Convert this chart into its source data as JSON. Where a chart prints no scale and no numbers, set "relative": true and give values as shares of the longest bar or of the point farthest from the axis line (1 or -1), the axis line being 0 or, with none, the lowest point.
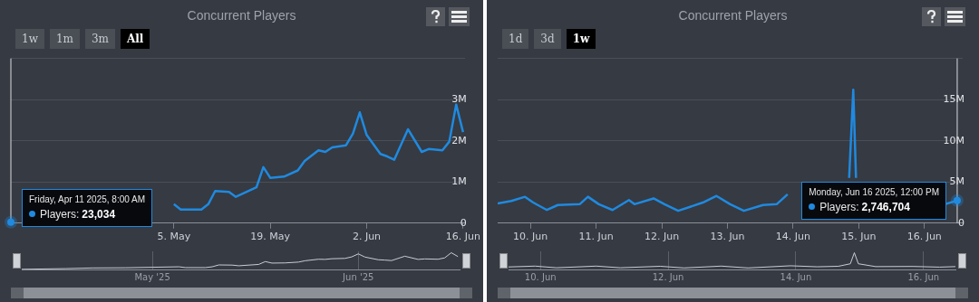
{
  "chart_data": [
    {
      "type": "line",
      "title": "Concurrent Players",
      "x": [
        "2025-04-11T08:00",
        "2025-04-25",
        "2025-05-05",
        "2025-05-06",
        "2025-05-09",
        "2025-05-10",
        "2025-05-11",
        "2025-05-13",
        "2025-05-14",
        "2025-05-17",
        "2025-05-18",
        "2025-05-19",
        "2025-05-21",
        "2025-05-23",
        "2025-05-24",
        "2025-05-26",
        "2025-05-27",
        "2025-05-28",
        "2025-05-30",
        "2025-05-31",
        "2025-06-01",
        "2025-06-02",
        "2025-06-04",
        "2025-06-05",
        "2025-06-06",
        "2025-06-08",
        "2025-06-10",
        "2025-06-11",
        "2025-06-13",
        "2025-06-14",
        "2025-06-15",
        "2025-06-16"
      ],
      "series": [
        {
          "color": "#1f8ae0",
          "values": [
            23034,
            null,
            460000,
            330000,
            330000,
            460000,
            780000,
            760000,
            640000,
            870000,
            1360000,
            1100000,
            1130000,
            1280000,
            1510000,
            1770000,
            1730000,
            1840000,
            1890000,
            2170000,
            2690000,
            2140000,
            1680000,
            1620000,
            1540000,
            2280000,
            1730000,
            1800000,
            1770000,
            1980000,
            2880000,
            2210000
          ]
        }
      ],
      "xlim": [
        "2025-04-11T08:00",
        "2025-06-16T06:00"
      ],
      "xticks": [
        {
          "value": "2025-05-05",
          "label": "5. May"
        },
        {
          "value": "2025-05-19",
          "label": "19. May"
        },
        {
          "value": "2025-06-02",
          "label": "2. Jun"
        },
        {
          "value": "2025-06-16",
          "label": "16. Jun"
        }
      ],
      "ylim": [
        0,
        4000000
      ],
      "yticks": [
        0,
        {
          "value": 1000000,
          "label": "1M"
        },
        {
          "value": 2000000,
          "label": "2M"
        },
        {
          "value": 3000000,
          "label": "3M"
        },
        {
          "value": 4000000,
          "label": null
        }
      ],
      "grid": "y",
      "ref_lines": [
        {
          "axis": "x",
          "value": "2025-04-11T08:00",
          "color": "#d8dbe0"
        }
      ],
      "annotations": [
        "1w",
        "1m",
        "3m",
        "All",
        "Friday, Apr 11 2025, 8:00 AM",
        "Players: 23,034"
      ]
    },
    {
      "type": "line",
      "relative": true,
      "x": [
        "2025-04-11T08:00",
        "2025-04-18",
        "2025-04-22",
        "2025-04-27",
        "2025-05-01",
        "2025-05-05",
        "2025-05-06",
        "2025-05-09",
        "2025-05-10",
        "2025-05-11",
        "2025-05-13",
        "2025-05-14",
        "2025-05-17",
        "2025-05-18",
        "2025-05-19",
        "2025-05-21",
        "2025-05-23",
        "2025-05-24",
        "2025-05-26",
        "2025-05-27",
        "2025-05-28",
        "2025-05-30",
        "2025-05-31",
        "2025-06-01",
        "2025-06-02",
        "2025-06-04",
        "2025-06-05",
        "2025-06-06",
        "2025-06-08",
        "2025-06-10",
        "2025-06-11",
        "2025-06-13",
        "2025-06-14",
        "2025-06-15",
        "2025-06-16"
      ],
      "series": [
        {
          "color": "#c8ccd4",
          "values": [
            0.01,
            0.05,
            0.09,
            0.1,
            0.13,
            0.16,
            0.11,
            0.11,
            0.16,
            0.27,
            0.26,
            0.22,
            0.3,
            0.47,
            0.38,
            0.39,
            0.44,
            0.52,
            0.61,
            0.6,
            0.64,
            0.66,
            0.75,
            0.93,
            0.74,
            0.58,
            0.56,
            0.53,
            0.79,
            0.6,
            0.63,
            0.61,
            0.69,
            1,
            0.77
          ]
        }
      ],
      "xlim": [
        "2025-04-11T08:00",
        "2025-06-16T06:00"
      ],
      "xticks": [
        {
          "value": "2025-05-01",
          "label": "May '25"
        },
        {
          "value": "2025-06-01",
          "label": "Jun '25"
        }
      ],
      "grid": "x",
      "tick_labels": "x"
    },
    {
      "type": "line",
      "title": "Concurrent Players",
      "x": [
        "2025-06-09T12:00",
        "2025-06-09T17:00",
        "2025-06-09T22:00",
        "2025-06-10T01:00",
        "2025-06-10T06:00",
        "2025-06-10T10:00",
        "2025-06-10T18:00",
        "2025-06-10T21:00",
        "2025-06-11T01:00",
        "2025-06-11T06:00",
        "2025-06-11T12:00",
        "2025-06-11T14:00",
        "2025-06-11T21:00",
        "2025-06-12T01:00",
        "2025-06-12T06:00",
        "2025-06-12T15:00",
        "2025-06-12T20:00",
        "2025-06-13T01:00",
        "2025-06-13T06:00",
        "2025-06-13T13:00",
        "2025-06-13T18:00",
        "2025-06-13T22:00",
        "2025-06-14T10:00",
        "2025-06-14T20:30",
        "2025-06-14T22:00",
        "2025-06-14T23:00",
        "2025-06-15T12:00",
        "2025-06-16T07:30",
        "2025-06-16T12:00"
      ],
      "series": [
        {
          "color": "#1f8ae0",
          "values": [
            2400000,
            2700000,
            3200000,
            2500000,
            1600000,
            2200000,
            2300000,
            3200000,
            2300000,
            1600000,
            2800000,
            2300000,
            3000000,
            2300000,
            1500000,
            2500000,
            3300000,
            2300000,
            1500000,
            2200000,
            2300000,
            3500000,
            null,
            5500000,
            16200000,
            5500000,
            null,
            2300000,
            2746704
          ]
        }
      ],
      "xlim": [
        "2025-06-09T12:00",
        "2025-06-16T14:00"
      ],
      "xticks": [
        {
          "value": "2025-06-10",
          "label": "10. Jun"
        },
        {
          "value": "2025-06-11",
          "label": "11. Jun"
        },
        {
          "value": "2025-06-12",
          "label": "12. Jun"
        },
        {
          "value": "2025-06-13",
          "label": "13. Jun"
        },
        {
          "value": "2025-06-14",
          "label": "14. Jun"
        },
        {
          "value": "2025-06-15",
          "label": "15. Jun"
        },
        {
          "value": "2025-06-16",
          "label": "16. Jun"
        }
      ],
      "ylim": [
        0,
        20000000
      ],
      "yticks": [
        0,
        {
          "value": 5000000,
          "label": "5M"
        },
        {
          "value": 10000000,
          "label": "10M"
        },
        {
          "value": 15000000,
          "label": "15M"
        },
        {
          "value": 20000000,
          "label": null
        }
      ],
      "grid": "y",
      "ref_lines": [
        {
          "axis": "x",
          "value": "2025-06-16T12:00",
          "color": "#d8dbe0"
        }
      ],
      "annotations": [
        "1d",
        "3d",
        "1w",
        "Monday, Jun 16 2025, 12:00 PM",
        "Players: 2,746,704"
      ]
    },
    {
      "type": "line",
      "relative": true,
      "x": [
        "2025-06-09T12:00",
        "2025-06-09T22:00",
        "2025-06-10T06:00",
        "2025-06-10T21:00",
        "2025-06-11T06:00",
        "2025-06-11T21:00",
        "2025-06-12T06:00",
        "2025-06-12T20:00",
        "2025-06-13T06:00",
        "2025-06-13T22:00",
        "2025-06-14T08:00",
        "2025-06-14T16:00",
        "2025-06-14T20:30",
        "2025-06-14T22:00",
        "2025-06-14T23:30",
        "2025-06-15T06:00",
        "2025-06-15T20:00",
        "2025-06-16T06:00",
        "2025-06-16T12:00"
      ],
      "series": [
        {
          "color": "#c8ccd4",
          "values": [
            0.15,
            0.2,
            0.1,
            0.2,
            0.1,
            0.19,
            0.09,
            0.2,
            0.09,
            0.22,
            0.16,
            0.19,
            0.34,
            1,
            0.34,
            0.17,
            0.18,
            0.14,
            0.17
          ]
        }
      ],
      "xlim": [
        "2025-06-09T12:00",
        "2025-06-16T12:00"
      ],
      "xticks": [
        {
          "value": "2025-06-10",
          "label": "10. Jun"
        },
        {
          "value": "2025-06-12",
          "label": "12. Jun"
        },
        {
          "value": "2025-06-14",
          "label": "14. Jun"
        },
        {
          "value": "2025-06-16",
          "label": "16. Jun"
        }
      ],
      "grid": "x",
      "tick_labels": "x"
    }
  ]
}
